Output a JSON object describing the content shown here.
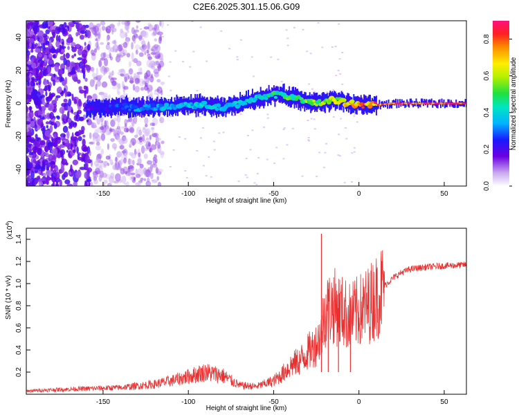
{
  "chart_data": [
    {
      "type": "heatmap",
      "title": "C2E6.2025.301.15.06.G09",
      "xlabel": "Height of straight line (km)",
      "ylabel": "Frequency (Hz)",
      "xlim": [
        -195,
        63
      ],
      "ylim": [
        -50,
        50
      ],
      "xticks": [
        -150,
        -100,
        -50,
        0,
        50
      ],
      "yticks": [
        -40,
        -20,
        0,
        20,
        40
      ],
      "ridge": {
        "x": [
          -158,
          -150,
          -140,
          -130,
          -120,
          -110,
          -100,
          -90,
          -80,
          -70,
          -60,
          -50,
          -45,
          -40,
          -35,
          -30,
          -25,
          -20,
          -15,
          -10,
          -5,
          0,
          10,
          20,
          30,
          40,
          50,
          63
        ],
        "frequency": [
          -3,
          -3,
          -2,
          -3,
          -2,
          -2,
          -1,
          -1,
          -3,
          0,
          3,
          5,
          5,
          4,
          3,
          1,
          0,
          1,
          2,
          1,
          0,
          -1,
          -1,
          0,
          0,
          0,
          0,
          0
        ],
        "amplitude": [
          0.2,
          0.25,
          0.3,
          0.35,
          0.35,
          0.4,
          0.4,
          0.42,
          0.42,
          0.42,
          0.45,
          0.5,
          0.5,
          0.55,
          0.5,
          0.6,
          0.6,
          0.65,
          0.65,
          0.7,
          0.75,
          0.8,
          0.85,
          0.9,
          0.9,
          0.9,
          0.9,
          0.9
        ]
      },
      "colorbar": {
        "label": "Normalized spectral amplitude",
        "range": [
          0,
          0.9
        ],
        "ticks": [
          "0.0",
          "0.2",
          "0.4",
          "0.6",
          "0.8"
        ]
      }
    },
    {
      "type": "line",
      "title": "",
      "xlabel": "Height of straight line (km)",
      "ylabel": "SNR (10 * v/v)",
      "scale_label": "(x10",
      "scale_exponent": "4",
      "xlim": [
        -195,
        63
      ],
      "ylim": [
        0,
        1.5
      ],
      "xticks": [
        -150,
        -100,
        -50,
        0,
        50
      ],
      "yticks": [
        0.2,
        0.4,
        0.6,
        0.8,
        1.0,
        1.2,
        1.4
      ],
      "color": "#e83030",
      "series": [
        {
          "name": "SNR",
          "x": [
            -195,
            -180,
            -160,
            -140,
            -120,
            -110,
            -100,
            -90,
            -80,
            -70,
            -60,
            -50,
            -45,
            -40,
            -35,
            -30,
            -25,
            -22,
            -20,
            -15,
            -10,
            -5,
            0,
            5,
            10,
            15,
            20,
            25,
            30,
            40,
            50,
            63
          ],
          "values": [
            0.03,
            0.04,
            0.05,
            0.06,
            0.09,
            0.12,
            0.16,
            0.2,
            0.17,
            0.08,
            0.07,
            0.12,
            0.18,
            0.26,
            0.3,
            0.38,
            0.45,
            0.55,
            0.75,
            0.8,
            0.75,
            0.7,
            0.75,
            0.8,
            0.88,
            0.98,
            1.05,
            1.1,
            1.13,
            1.15,
            1.16,
            1.17
          ]
        }
      ],
      "spikes": [
        {
          "x": -22,
          "value": 1.45
        },
        {
          "x": -18,
          "value": 0.95
        },
        {
          "x": -12,
          "value": 0.9
        },
        {
          "x": -5,
          "value": 0.85
        }
      ]
    }
  ]
}
